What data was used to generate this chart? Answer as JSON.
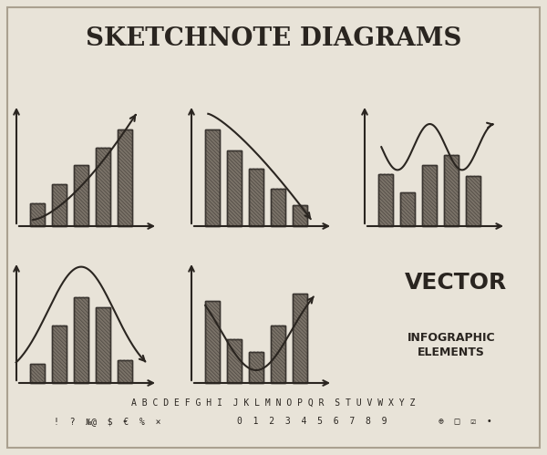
{
  "bg_color": "#e8e3d8",
  "bar_fill_color": "#7a7268",
  "bar_edge_color": "#3a3530",
  "line_color": "#2a2520",
  "axis_color": "#2a2520",
  "hatch_color": "#3a3530",
  "title": "SKETCHNOTE DIAGRAMS",
  "vector_text": "VECTOR",
  "infographic_line1": "INFOGRAPHIC",
  "infographic_line2": "ELEMENTS",
  "alphabet": "A B C D E F G H I  J K L M N O P Q R  S T U V W X Y Z",
  "symbols_left": "!  ?  №@  $  €  %  ×",
  "symbols_mid": "0  1  2  3  4  5  6  7  8  9",
  "chart1_bars": [
    0.22,
    0.4,
    0.58,
    0.75,
    0.92
  ],
  "chart2_bars": [
    0.92,
    0.72,
    0.55,
    0.36,
    0.2
  ],
  "chart3_bars": [
    0.5,
    0.32,
    0.58,
    0.68,
    0.48
  ],
  "chart4_bars": [
    0.18,
    0.55,
    0.82,
    0.72,
    0.22
  ],
  "chart5_bars": [
    0.78,
    0.42,
    0.3,
    0.55,
    0.85
  ],
  "title_fontsize": 20,
  "vector_fontsize": 18,
  "info_fontsize": 9,
  "alpha_fontsize": 7,
  "sym_fontsize": 7
}
